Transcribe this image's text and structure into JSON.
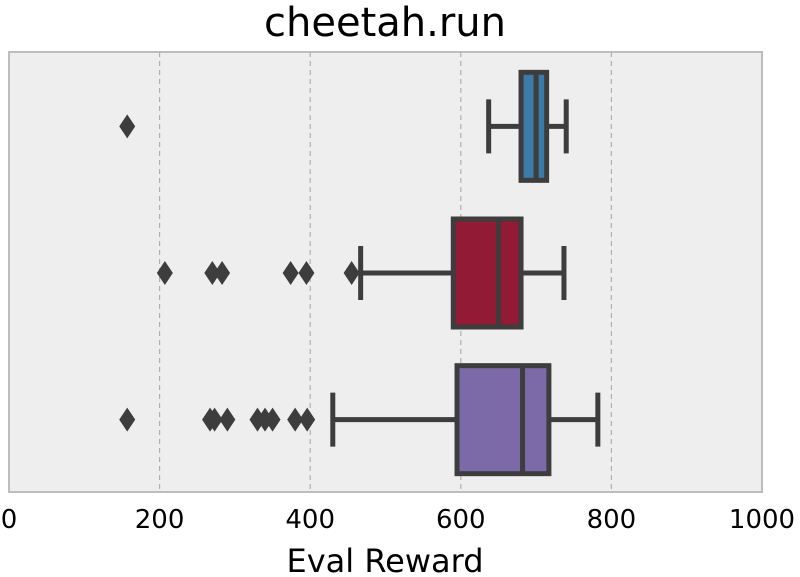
{
  "chart_data": {
    "type": "boxplot",
    "orientation": "horizontal",
    "title": "cheetah.run",
    "xlabel": "Eval Reward",
    "ylabel": "",
    "xlim": [
      0,
      1000
    ],
    "xticks": [
      0,
      200,
      400,
      600,
      800,
      1000
    ],
    "grid": "vertical dashed",
    "legend": "none",
    "background": "#eeeeee",
    "boxes": [
      {
        "color": "#3b7ba7",
        "whislo": 637,
        "q1": 680,
        "med": 700,
        "q3": 714,
        "whishi": 740,
        "fliers": [
          157
        ]
      },
      {
        "color": "#931a34",
        "whislo": 467,
        "q1": 590,
        "med": 650,
        "q3": 680,
        "whishi": 737,
        "fliers": [
          207,
          270,
          283,
          374,
          395,
          455
        ]
      },
      {
        "color": "#7c6aa8",
        "whislo": 430,
        "q1": 595,
        "med": 682,
        "q3": 717,
        "whishi": 782,
        "fliers": [
          157,
          267,
          273,
          290,
          330,
          340,
          350,
          380,
          396
        ]
      }
    ]
  }
}
